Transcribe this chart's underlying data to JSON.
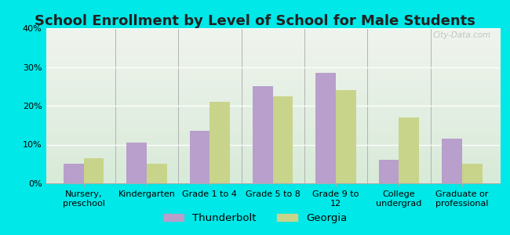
{
  "title": "School Enrollment by Level of School for Male Students",
  "categories": [
    "Nursery,\npreschool",
    "Kindergarten",
    "Grade 1 to 4",
    "Grade 5 to 8",
    "Grade 9 to\n12",
    "College\nundergrad",
    "Graduate or\nprofessional"
  ],
  "thunderbolt": [
    5,
    10.5,
    13.5,
    25,
    28.5,
    6,
    11.5
  ],
  "georgia": [
    6.5,
    5,
    21,
    22.5,
    24,
    17,
    5
  ],
  "thunderbolt_color": "#b89fcc",
  "georgia_color": "#c8d48a",
  "background_color": "#00e8e8",
  "plot_bg_top": "#f0f4ee",
  "plot_bg_bottom": "#d8ead8",
  "ylim": [
    0,
    40
  ],
  "yticks": [
    0,
    10,
    20,
    30,
    40
  ],
  "ytick_labels": [
    "0%",
    "10%",
    "20%",
    "30%",
    "40%"
  ],
  "title_fontsize": 13,
  "legend_fontsize": 9.5,
  "tick_fontsize": 8,
  "bar_width": 0.32
}
